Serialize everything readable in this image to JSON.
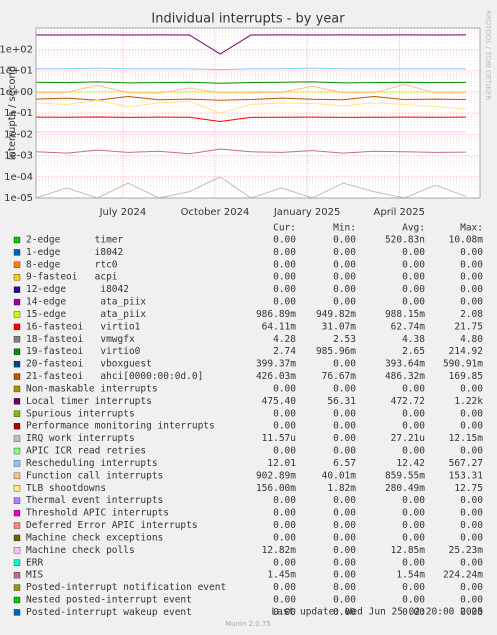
{
  "chart_data": {
    "type": "line",
    "title": "Individual interrupts - by year",
    "y_label": "interrupts / second",
    "side_label": "RRDTOOL / TOBI OETIKER",
    "log_scale": true,
    "grid": true,
    "x": [
      0,
      1,
      2,
      3,
      4,
      5,
      6,
      7,
      8,
      9,
      10,
      11,
      12,
      13,
      14
    ],
    "xlim": [
      0,
      14.46
    ],
    "xticks": [
      {
        "value": 2.83,
        "label": "July 2024"
      },
      {
        "value": 5.83,
        "label": "October 2024"
      },
      {
        "value": 8.83,
        "label": "January 2025"
      },
      {
        "value": 11.83,
        "label": "April 2025"
      }
    ],
    "ylim": [
      1e-05,
      1000
    ],
    "yticks": [
      {
        "value": 1e-05,
        "label": "1e-05"
      },
      {
        "value": 0.0001,
        "label": "1e-04"
      },
      {
        "value": 0.001,
        "label": "1e-03"
      },
      {
        "value": 0.01,
        "label": "1e-02"
      },
      {
        "value": 0.1,
        "label": "1e-01"
      },
      {
        "value": 1,
        "label": "1e+00"
      },
      {
        "value": 10,
        "label": "1e+01"
      },
      {
        "value": 100,
        "label": "1e+02"
      }
    ],
    "stat_headers": [
      "Cur:",
      "Min:",
      "Avg:",
      "Max:"
    ],
    "series": [
      {
        "name": "2-edge      timer",
        "color": "#00cc00",
        "cur": "0.00",
        "min": "0.00",
        "avg": "520.83n",
        "max": "10.08m"
      },
      {
        "name": "1-edge      i8042",
        "color": "#0066b3",
        "cur": "0.00",
        "min": "0.00",
        "avg": "0.00",
        "max": "0.00"
      },
      {
        "name": "8-edge      rtc0",
        "color": "#ff8000",
        "cur": "0.00",
        "min": "0.00",
        "avg": "0.00",
        "max": "0.00"
      },
      {
        "name": "9-fasteoi   acpi",
        "color": "#ffcc00",
        "cur": "0.00",
        "min": "0.00",
        "avg": "0.00",
        "max": "0.00"
      },
      {
        "name": "12-edge      i8042",
        "color": "#330099",
        "cur": "0.00",
        "min": "0.00",
        "avg": "0.00",
        "max": "0.00"
      },
      {
        "name": "14-edge      ata_piix",
        "color": "#990099",
        "cur": "0.00",
        "min": "0.00",
        "avg": "0.00",
        "max": "0.00"
      },
      {
        "name": "15-edge      ata_piix",
        "color": "#ccff00",
        "cur": "986.89m",
        "min": "949.82m",
        "avg": "988.15m",
        "max": "2.08",
        "values": [
          0.99,
          0.98,
          0.99,
          0.99,
          0.98,
          0.99,
          0.97,
          0.99,
          0.99,
          0.98,
          0.99,
          0.99,
          0.98,
          0.99,
          0.99
        ]
      },
      {
        "name": "16-fasteoi   virtio1",
        "color": "#ff0000",
        "cur": "64.11m",
        "min": "31.07m",
        "avg": "62.74m",
        "max": "21.75",
        "values": [
          0.064,
          0.063,
          0.065,
          0.062,
          0.064,
          0.063,
          0.04,
          0.062,
          0.063,
          0.064,
          0.062,
          0.063,
          0.064,
          0.063,
          0.064
        ]
      },
      {
        "name": "18-fasteoi   vmwgfx",
        "color": "#808080",
        "cur": "4.28",
        "min": "2.53",
        "avg": "4.38",
        "max": "4.80"
      },
      {
        "name": "19-fasteoi   virtio0",
        "color": "#008f00",
        "cur": "2.74",
        "min": "985.96m",
        "avg": "2.65",
        "max": "214.92",
        "values": [
          2.8,
          2.7,
          2.9,
          2.6,
          2.7,
          2.8,
          2.5,
          2.7,
          2.8,
          2.9,
          2.6,
          2.7,
          2.8,
          2.7,
          2.74
        ]
      },
      {
        "name": "20-fasteoi   vboxguest",
        "color": "#00487d",
        "cur": "399.37m",
        "min": "0.00",
        "avg": "393.64m",
        "max": "590.91m"
      },
      {
        "name": "21-fasteoi   ahci[0000:00:0d.0]",
        "color": "#b35a00",
        "cur": "426.03m",
        "min": "76.67m",
        "avg": "486.32m",
        "max": "169.85",
        "values": [
          0.45,
          0.5,
          0.4,
          0.6,
          0.42,
          0.45,
          0.4,
          0.43,
          0.5,
          0.44,
          0.42,
          0.6,
          0.43,
          0.45,
          0.43
        ]
      },
      {
        "name": "Non-maskable interrupts",
        "color": "#b38f00",
        "cur": "0.00",
        "min": "0.00",
        "avg": "0.00",
        "max": "0.00"
      },
      {
        "name": "Local timer interrupts",
        "color": "#6b006b",
        "cur": "475.40",
        "min": "56.31",
        "avg": "472.72",
        "max": "1.22k",
        "values": [
          470,
          470,
          472,
          470,
          471,
          470,
          60,
          470,
          472,
          470,
          471,
          470,
          472,
          470,
          475
        ]
      },
      {
        "name": "Spurious interrupts",
        "color": "#8fb300",
        "cur": "0.00",
        "min": "0.00",
        "avg": "0.00",
        "max": "0.00"
      },
      {
        "name": "Performance monitoring interrupts",
        "color": "#b30000",
        "cur": "0.00",
        "min": "0.00",
        "avg": "0.00",
        "max": "0.00"
      },
      {
        "name": "IRQ work interrupts",
        "color": "#bebebe",
        "cur": "11.57u",
        "min": "0.00",
        "avg": "27.21u",
        "max": "12.15m",
        "values": [
          1e-05,
          3e-05,
          1e-05,
          5e-05,
          1e-05,
          2e-05,
          0.0001,
          1e-05,
          3e-05,
          1e-05,
          5e-05,
          2e-05,
          1e-05,
          4e-05,
          1.2e-05
        ]
      },
      {
        "name": "APIC ICR read retries",
        "color": "#80ff80",
        "cur": "0.00",
        "min": "0.00",
        "avg": "0.00",
        "max": "0.00"
      },
      {
        "name": "Rescheduling interrupts",
        "color": "#80c9ff",
        "cur": "12.01",
        "min": "6.57",
        "avg": "12.42",
        "max": "567.27",
        "values": [
          12,
          12,
          13,
          12,
          12,
          12,
          11,
          12,
          12,
          13,
          12,
          12,
          12,
          12,
          12
        ]
      },
      {
        "name": "Function call interrupts",
        "color": "#ffc080",
        "cur": "902.89m",
        "min": "40.01m",
        "avg": "859.55m",
        "max": "153.31",
        "values": [
          0.9,
          0.95,
          2,
          0.9,
          0.85,
          1.5,
          0.9,
          0.9,
          0.95,
          1.8,
          0.9,
          0.9,
          2.2,
          0.9,
          0.9
        ]
      },
      {
        "name": "TLB shootdowns",
        "color": "#ffe680",
        "cur": "156.00m",
        "min": "1.82m",
        "avg": "280.49m",
        "max": "12.75",
        "values": [
          0.3,
          0.25,
          0.4,
          0.2,
          0.3,
          0.35,
          0.1,
          0.25,
          0.3,
          0.28,
          0.22,
          0.3,
          0.25,
          0.2,
          0.156
        ]
      },
      {
        "name": "Thermal event interrupts",
        "color": "#aa80ff",
        "cur": "0.00",
        "min": "0.00",
        "avg": "0.00",
        "max": "0.00"
      },
      {
        "name": "Threshold APIC interrupts",
        "color": "#ee00cc",
        "cur": "0.00",
        "min": "0.00",
        "avg": "0.00",
        "max": "0.00"
      },
      {
        "name": "Deferred Error APIC interrupts",
        "color": "#ff8080",
        "cur": "0.00",
        "min": "0.00",
        "avg": "0.00",
        "max": "0.00"
      },
      {
        "name": "Machine check exceptions",
        "color": "#666600",
        "cur": "0.00",
        "min": "0.00",
        "avg": "0.00",
        "max": "0.00"
      },
      {
        "name": "Machine check polls",
        "color": "#ffbfff",
        "cur": "12.82m",
        "min": "0.00",
        "avg": "12.85m",
        "max": "25.23m",
        "values": [
          0.0128,
          0.0128,
          0.0129,
          0.0128,
          0.0128,
          0.0128,
          0.0127,
          0.0128,
          0.0129,
          0.0128,
          0.0128,
          0.0128,
          0.0129,
          0.0128,
          0.0128
        ]
      },
      {
        "name": "ERR",
        "color": "#00ffcc",
        "cur": "0.00",
        "min": "0.00",
        "avg": "0.00",
        "max": "0.00"
      },
      {
        "name": "MIS",
        "color": "#cc6699",
        "cur": "1.45m",
        "min": "0.00",
        "avg": "1.54m",
        "max": "224.24m",
        "values": [
          0.0015,
          0.0013,
          0.0018,
          0.0014,
          0.0016,
          0.0012,
          0.002,
          0.0015,
          0.0014,
          0.0017,
          0.0013,
          0.0016,
          0.0015,
          0.0014,
          0.00145
        ]
      },
      {
        "name": "Posted-interrupt notification event",
        "color": "#999900",
        "cur": "0.00",
        "min": "0.00",
        "avg": "0.00",
        "max": "0.00"
      },
      {
        "name": "Nested posted-interrupt event",
        "color": "#00cc00",
        "cur": "0.00",
        "min": "0.00",
        "avg": "0.00",
        "max": "0.00"
      },
      {
        "name": "Posted-interrupt wakeup event",
        "color": "#0066b3",
        "cur": "0.00",
        "min": "0.00",
        "avg": "0.00",
        "max": "0.00"
      }
    ],
    "last_update": "Last update: Wed Jun 25 02:20:00 2025",
    "footer": "Munin 2.0.75"
  }
}
